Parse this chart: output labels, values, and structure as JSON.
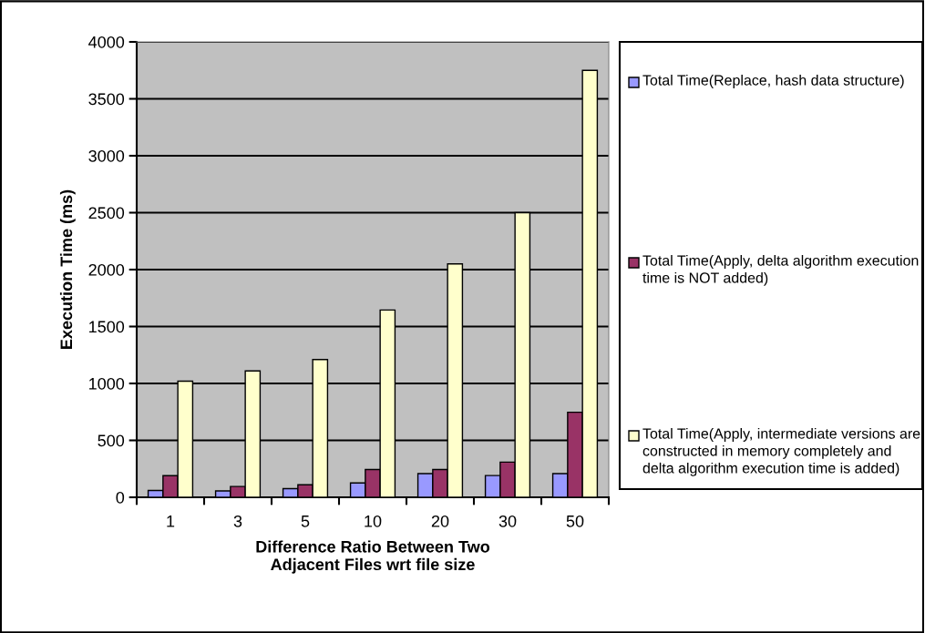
{
  "chart_data": {
    "type": "bar",
    "xlabel": "Difference Ratio Between Two\nAdjacent Files wrt file size",
    "ylabel": "Execution Time (ms)",
    "categories": [
      "1",
      "3",
      "5",
      "10",
      "20",
      "30",
      "50"
    ],
    "series": [
      {
        "name": "Total Time(Replace, hash data structure)",
        "color": "#9999ff",
        "values": [
          60,
          56,
          76,
          126,
          208,
          191,
          208
        ]
      },
      {
        "name": "Total Time(Apply, delta algorithm execution time is NOT added)",
        "color": "#993366",
        "values": [
          190,
          95,
          110,
          244,
          244,
          309,
          747
        ]
      },
      {
        "name": "Total Time(Apply, intermediate versions are constructed in memory completely and delta algorithm execution time is added)",
        "color": "#ffffcc",
        "values": [
          1020,
          1110,
          1210,
          1645,
          2050,
          2500,
          3750
        ]
      }
    ],
    "ylim": [
      0,
      4000
    ],
    "yticks": [
      0,
      500,
      1000,
      1500,
      2000,
      2500,
      3000,
      3500,
      4000
    ],
    "grid": "y",
    "legend": "right"
  }
}
